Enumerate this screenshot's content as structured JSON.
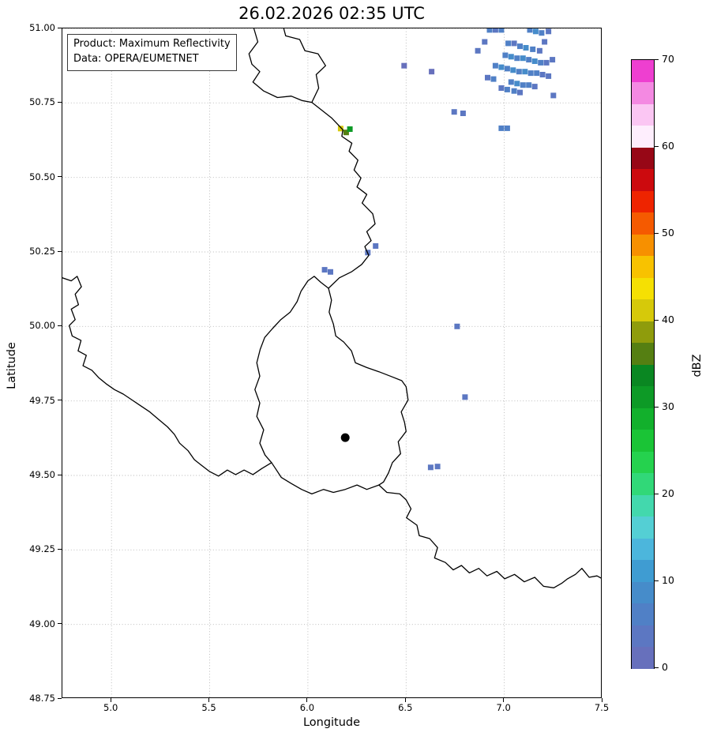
{
  "title": "26.02.2026 02:35 UTC",
  "info_box": {
    "product": "Product: Maximum Reflectivity",
    "data_source": "Data: OPERA/EUMETNET"
  },
  "chart_data": {
    "type": "map-raster",
    "description": "Weather radar maximum reflectivity composite over the Belgium / Luxembourg / western Germany region",
    "xlabel": "Longitude",
    "ylabel": "Latitude",
    "xlim": [
      4.75,
      7.5
    ],
    "ylim": [
      48.75,
      51.0
    ],
    "xticks": [
      5.0,
      5.5,
      6.0,
      6.5,
      7.0,
      7.5
    ],
    "xtick_labels": [
      "5.0",
      "5.5",
      "6.0",
      "6.5",
      "7.0",
      "7.5"
    ],
    "yticks": [
      51.0,
      50.75,
      50.5,
      50.25,
      50.0,
      49.75,
      49.5,
      49.25,
      49.0,
      48.75
    ],
    "ytick_labels": [
      "51.00",
      "50.75",
      "50.50",
      "50.25",
      "50.00",
      "49.75",
      "49.50",
      "49.25",
      "49.00",
      "48.75"
    ],
    "grid": "dotted",
    "grid_color": "#b5b5b5",
    "border_color": "#000000",
    "colorbar": {
      "label": "dBZ",
      "vmin": 0,
      "vmax": 70,
      "band_size": 2.5,
      "tick_values": [
        0,
        10,
        20,
        30,
        40,
        50,
        60,
        70
      ],
      "tick_labels": [
        "0",
        "10",
        "20",
        "30",
        "40",
        "50",
        "60",
        "70"
      ],
      "colors": [
        "#6770bc",
        "#5c77c2",
        "#5080c6",
        "#468cca",
        "#3f9cd2",
        "#4cb6dc",
        "#54cfd4",
        "#43d8ad",
        "#31d878",
        "#25d24e",
        "#1ac436",
        "#12b02c",
        "#0d9a26",
        "#0a8722",
        "#557f12",
        "#8f9c0c",
        "#d6c90a",
        "#f5e003",
        "#f8c200",
        "#f79000",
        "#f55a00",
        "#ee2400",
        "#cc0a0e",
        "#970716",
        "#feeefd",
        "#fbc6f3",
        "#f489e2",
        "#ee3fd0"
      ]
    },
    "station_marker": {
      "lon": 6.19,
      "lat": 49.627,
      "color": "#000000"
    },
    "radar_echoes_lon_lat_dbz": [
      [
        6.49,
        50.875,
        2
      ],
      [
        6.63,
        50.855,
        2
      ],
      [
        6.925,
        50.995,
        6
      ],
      [
        6.955,
        50.995,
        4
      ],
      [
        6.985,
        50.995,
        6
      ],
      [
        7.13,
        50.995,
        6
      ],
      [
        7.16,
        50.99,
        8
      ],
      [
        7.19,
        50.985,
        6
      ],
      [
        7.225,
        50.99,
        4
      ],
      [
        6.9,
        50.955,
        4
      ],
      [
        7.02,
        50.95,
        6
      ],
      [
        7.05,
        50.95,
        4
      ],
      [
        7.205,
        50.955,
        4
      ],
      [
        7.08,
        50.94,
        6
      ],
      [
        7.11,
        50.935,
        8
      ],
      [
        7.145,
        50.93,
        6
      ],
      [
        7.18,
        50.925,
        4
      ],
      [
        6.865,
        50.925,
        4
      ],
      [
        7.005,
        50.91,
        6
      ],
      [
        7.035,
        50.905,
        8
      ],
      [
        7.065,
        50.9,
        6
      ],
      [
        7.095,
        50.9,
        8
      ],
      [
        7.125,
        50.895,
        6
      ],
      [
        7.155,
        50.89,
        8
      ],
      [
        7.185,
        50.885,
        6
      ],
      [
        7.215,
        50.885,
        4
      ],
      [
        7.245,
        50.895,
        4
      ],
      [
        6.955,
        50.875,
        6
      ],
      [
        6.985,
        50.87,
        8
      ],
      [
        7.015,
        50.865,
        6
      ],
      [
        7.045,
        50.86,
        8
      ],
      [
        7.075,
        50.855,
        6
      ],
      [
        7.105,
        50.855,
        8
      ],
      [
        7.135,
        50.85,
        6
      ],
      [
        7.165,
        50.85,
        6
      ],
      [
        7.195,
        50.845,
        4
      ],
      [
        7.225,
        50.84,
        4
      ],
      [
        6.915,
        50.835,
        4
      ],
      [
        6.945,
        50.83,
        6
      ],
      [
        7.035,
        50.82,
        6
      ],
      [
        7.065,
        50.815,
        8
      ],
      [
        7.095,
        50.81,
        6
      ],
      [
        7.125,
        50.81,
        6
      ],
      [
        7.155,
        50.805,
        4
      ],
      [
        6.985,
        50.8,
        4
      ],
      [
        7.015,
        50.795,
        6
      ],
      [
        7.05,
        50.79,
        6
      ],
      [
        7.08,
        50.785,
        4
      ],
      [
        7.25,
        50.775,
        4
      ],
      [
        6.745,
        50.72,
        3
      ],
      [
        6.79,
        50.715,
        4
      ],
      [
        6.985,
        50.665,
        6
      ],
      [
        7.015,
        50.665,
        6
      ],
      [
        6.345,
        50.27,
        4
      ],
      [
        6.305,
        50.248,
        4
      ],
      [
        6.085,
        50.19,
        3
      ],
      [
        6.115,
        50.183,
        3
      ],
      [
        6.76,
        50.0,
        4
      ],
      [
        6.8,
        49.763,
        4
      ],
      [
        6.625,
        49.527,
        3
      ],
      [
        6.66,
        49.53,
        4
      ],
      [
        6.167,
        50.664,
        41
      ],
      [
        6.195,
        50.651,
        36
      ],
      [
        6.214,
        50.662,
        31
      ]
    ],
    "country_borders": [
      [
        [
          5.725,
          51.0
        ],
        [
          5.745,
          50.955
        ],
        [
          5.7,
          50.915
        ],
        [
          5.715,
          50.88
        ],
        [
          5.755,
          50.855
        ],
        [
          5.72,
          50.82
        ],
        [
          5.775,
          50.79
        ],
        [
          5.845,
          50.768
        ],
        [
          5.915,
          50.773
        ],
        [
          5.97,
          50.758
        ],
        [
          6.02,
          50.752
        ]
      ],
      [
        [
          6.02,
          50.752
        ],
        [
          6.055,
          50.8
        ],
        [
          6.042,
          50.845
        ],
        [
          6.09,
          50.875
        ],
        [
          6.052,
          50.915
        ],
        [
          5.985,
          50.925
        ],
        [
          5.958,
          50.963
        ],
        [
          5.887,
          50.975
        ],
        [
          5.877,
          51.0
        ]
      ],
      [
        [
          6.02,
          50.752
        ],
        [
          6.082,
          50.72
        ],
        [
          6.12,
          50.7
        ],
        [
          6.155,
          50.676
        ],
        [
          6.178,
          50.66
        ],
        [
          6.173,
          50.638
        ],
        [
          6.224,
          50.615
        ],
        [
          6.21,
          50.588
        ],
        [
          6.255,
          50.558
        ],
        [
          6.235,
          50.525
        ],
        [
          6.27,
          50.498
        ],
        [
          6.25,
          50.468
        ],
        [
          6.3,
          50.443
        ],
        [
          6.276,
          50.414
        ],
        [
          6.33,
          50.378
        ],
        [
          6.342,
          50.344
        ],
        [
          6.3,
          50.318
        ],
        [
          6.322,
          50.288
        ],
        [
          6.29,
          50.268
        ],
        [
          6.31,
          50.238
        ],
        [
          6.274,
          50.208
        ],
        [
          6.224,
          50.184
        ],
        [
          6.16,
          50.163
        ],
        [
          6.105,
          50.128
        ],
        [
          6.12,
          50.088
        ],
        [
          6.108,
          50.048
        ],
        [
          6.13,
          50.008
        ],
        [
          6.142,
          49.968
        ],
        [
          6.182,
          49.948
        ],
        [
          6.222,
          49.918
        ],
        [
          6.242,
          49.878
        ],
        [
          6.3,
          49.862
        ],
        [
          6.362,
          49.848
        ],
        [
          6.42,
          49.833
        ],
        [
          6.478,
          49.818
        ],
        [
          6.5,
          49.798
        ],
        [
          6.51,
          49.753
        ],
        [
          6.475,
          49.713
        ],
        [
          6.492,
          49.678
        ],
        [
          6.5,
          49.648
        ],
        [
          6.46,
          49.613
        ],
        [
          6.472,
          49.573
        ],
        [
          6.43,
          49.543
        ],
        [
          6.41,
          49.508
        ],
        [
          6.385,
          49.478
        ],
        [
          6.362,
          49.468
        ],
        [
          6.402,
          49.443
        ],
        [
          6.468,
          49.438
        ],
        [
          6.5,
          49.418
        ],
        [
          6.525,
          49.388
        ],
        [
          6.502,
          49.358
        ],
        [
          6.555,
          49.333
        ],
        [
          6.567,
          49.298
        ],
        [
          6.62,
          49.288
        ],
        [
          6.66,
          49.258
        ],
        [
          6.645,
          49.223
        ],
        [
          6.7,
          49.208
        ],
        [
          6.74,
          49.183
        ],
        [
          6.782,
          49.198
        ],
        [
          6.822,
          49.173
        ],
        [
          6.87,
          49.188
        ],
        [
          6.912,
          49.163
        ],
        [
          6.962,
          49.178
        ],
        [
          7.002,
          49.153
        ],
        [
          7.052,
          49.168
        ],
        [
          7.102,
          49.143
        ],
        [
          7.155,
          49.158
        ],
        [
          7.2,
          49.128
        ],
        [
          7.252,
          49.123
        ],
        [
          7.292,
          49.138
        ],
        [
          7.322,
          49.153
        ],
        [
          7.362,
          49.168
        ],
        [
          7.395,
          49.188
        ],
        [
          7.432,
          49.158
        ],
        [
          7.472,
          49.163
        ],
        [
          7.5,
          49.153
        ]
      ],
      [
        [
          6.362,
          49.468
        ],
        [
          6.3,
          49.453
        ],
        [
          6.25,
          49.468
        ],
        [
          6.19,
          49.453
        ],
        [
          6.13,
          49.443
        ],
        [
          6.08,
          49.453
        ],
        [
          6.02,
          49.438
        ],
        [
          5.968,
          49.453
        ],
        [
          5.915,
          49.473
        ],
        [
          5.865,
          49.493
        ],
        [
          5.835,
          49.523
        ],
        [
          5.815,
          49.543
        ],
        [
          5.782,
          49.568
        ],
        [
          5.755,
          49.608
        ],
        [
          5.775,
          49.653
        ],
        [
          5.74,
          49.698
        ],
        [
          5.755,
          49.743
        ],
        [
          5.73,
          49.788
        ],
        [
          5.755,
          49.833
        ],
        [
          5.74,
          49.878
        ],
        [
          5.757,
          49.923
        ],
        [
          5.78,
          49.963
        ],
        [
          5.82,
          49.993
        ],
        [
          5.862,
          50.023
        ],
        [
          5.91,
          50.048
        ],
        [
          5.945,
          50.083
        ],
        [
          5.965,
          50.118
        ],
        [
          6.0,
          50.153
        ],
        [
          6.032,
          50.168
        ],
        [
          6.066,
          50.148
        ],
        [
          6.105,
          50.128
        ]
      ],
      [
        [
          4.75,
          50.163
        ],
        [
          4.795,
          50.153
        ],
        [
          4.825,
          50.168
        ],
        [
          4.847,
          50.133
        ],
        [
          4.815,
          50.108
        ],
        [
          4.832,
          50.073
        ],
        [
          4.795,
          50.058
        ],
        [
          4.815,
          50.023
        ],
        [
          4.785,
          50.003
        ],
        [
          4.8,
          49.968
        ],
        [
          4.845,
          49.953
        ],
        [
          4.83,
          49.918
        ],
        [
          4.872,
          49.903
        ],
        [
          4.855,
          49.868
        ],
        [
          4.9,
          49.853
        ],
        [
          4.935,
          49.828
        ],
        [
          4.972,
          49.808
        ],
        [
          5.015,
          49.788
        ],
        [
          5.06,
          49.773
        ],
        [
          5.105,
          49.753
        ],
        [
          5.15,
          49.733
        ],
        [
          5.195,
          49.713
        ],
        [
          5.24,
          49.688
        ],
        [
          5.285,
          49.663
        ],
        [
          5.32,
          49.638
        ],
        [
          5.347,
          49.608
        ],
        [
          5.39,
          49.583
        ],
        [
          5.422,
          49.553
        ],
        [
          5.46,
          49.533
        ],
        [
          5.5,
          49.513
        ],
        [
          5.545,
          49.498
        ],
        [
          5.59,
          49.518
        ],
        [
          5.632,
          49.503
        ],
        [
          5.675,
          49.518
        ],
        [
          5.72,
          49.503
        ],
        [
          5.765,
          49.523
        ],
        [
          5.815,
          49.543
        ]
      ]
    ]
  }
}
